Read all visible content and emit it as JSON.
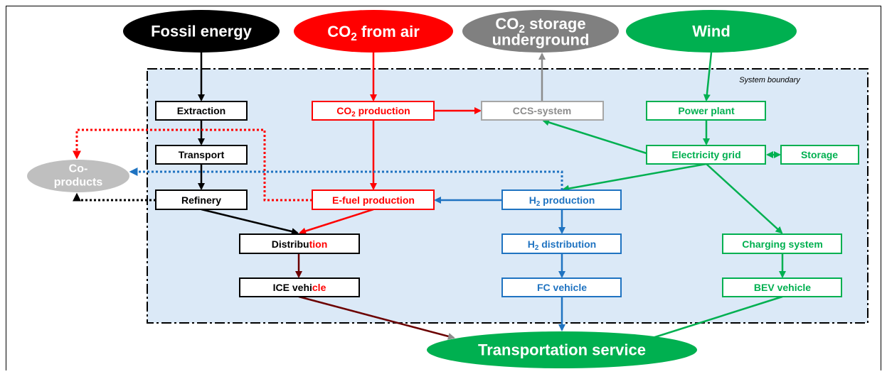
{
  "system_boundary": "System boundary",
  "sources": {
    "fossil": "Fossil energy",
    "co2_air": [
      "CO",
      "2",
      " from air"
    ],
    "co2_storage": {
      "line1": [
        "CO",
        "2",
        " storage"
      ],
      "line2": "underground"
    },
    "wind": "Wind"
  },
  "co_products": [
    "Co-",
    "products"
  ],
  "boxes": {
    "extraction": "Extraction",
    "transport": "Transport",
    "refinery": "Refinery",
    "co2_production": [
      "CO",
      "2",
      " production"
    ],
    "ccs": "CCS-system",
    "power_plant": "Power plant",
    "electricity_grid": "Electricity grid",
    "storage": "Storage",
    "efuel": "E-fuel production",
    "h2_production": [
      "H",
      "2",
      " production"
    ],
    "distribution": [
      "Distribu",
      "tion"
    ],
    "h2_distribution": [
      "H",
      "2",
      " distribution"
    ],
    "charging": "Charging system",
    "ice": [
      "ICE vehi",
      "cle"
    ],
    "fc": "FC vehicle",
    "bev": "BEV vehicle"
  },
  "output": "Transportation service"
}
